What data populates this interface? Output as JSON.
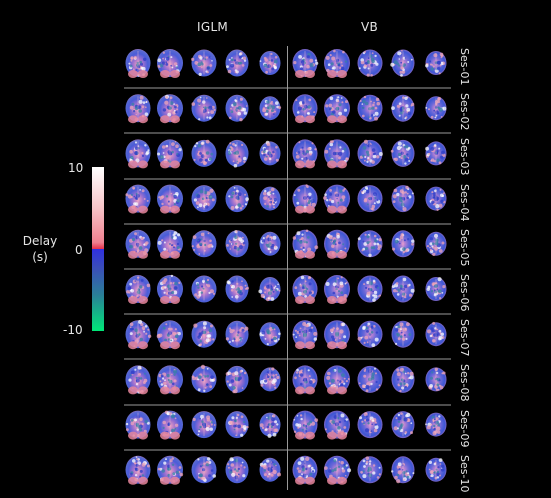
{
  "figure": {
    "method_headers": [
      "IGLM",
      "VB"
    ],
    "sessions": [
      "Ses-01",
      "Ses-02",
      "Ses-03",
      "Ses-04",
      "Ses-05",
      "Ses-06",
      "Ses-07",
      "Ses-08",
      "Ses-09",
      "Ses-10"
    ],
    "slices_per_method": 5,
    "colorbar": {
      "title_line1": "Delay",
      "title_line2": "(s)",
      "max_label": "10",
      "mid_label": "0",
      "min_label": "-10",
      "colors": {
        "max": "#ffffff",
        "upper_mid": "#f5a0a8",
        "zero_pos": "#e8304a",
        "zero_neg": "#3030e0",
        "lower_mid": "#2a6fa0",
        "min": "#00e878"
      }
    }
  }
}
